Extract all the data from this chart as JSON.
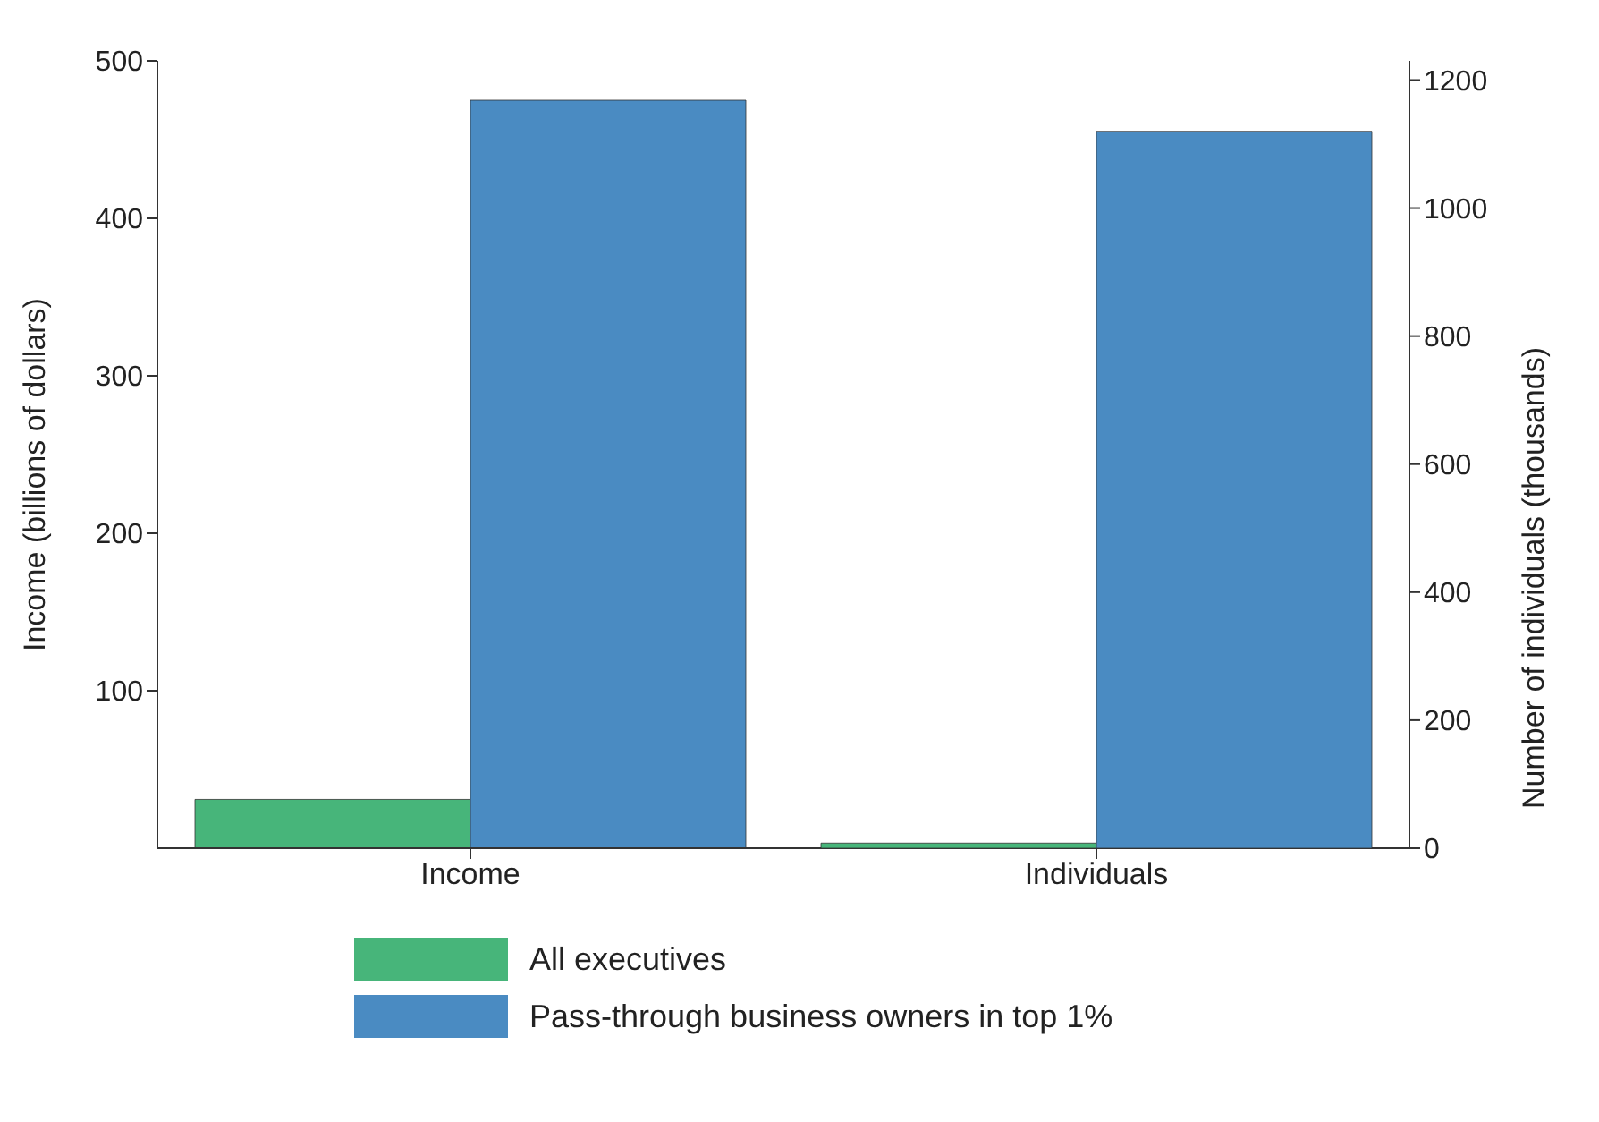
{
  "chart_data": {
    "type": "bar",
    "categories": [
      "Income",
      "Individuals"
    ],
    "ylabel": "Income (billions of dollars)",
    "y2label": "Number of individuals (thousands)",
    "ylim": [
      0,
      500
    ],
    "yticks": [
      100,
      200,
      300,
      400,
      500
    ],
    "y2lim": [
      0,
      1230
    ],
    "y2ticks": [
      0,
      200,
      400,
      600,
      800,
      1000,
      1200
    ],
    "legend": "bottom",
    "series": [
      {
        "name": "All executives",
        "color": "#47b57a",
        "values": [
          31,
          null
        ]
      },
      {
        "name": "Pass-through business owners in top 1%",
        "color": "#4a8bc2",
        "values": [
          475,
          null
        ]
      },
      {
        "color": "#47b57a",
        "values": [
          null,
          8
        ],
        "axis": "y2"
      },
      {
        "color": "#4a8bc2",
        "values": [
          null,
          1120
        ],
        "axis": "y2"
      }
    ]
  }
}
